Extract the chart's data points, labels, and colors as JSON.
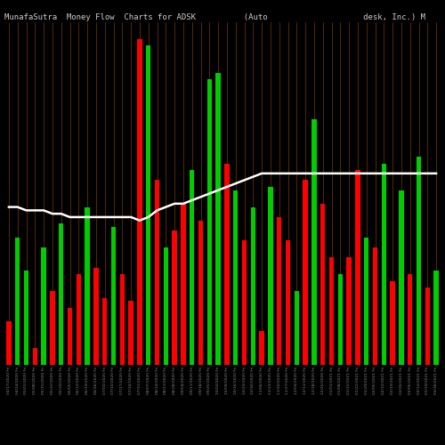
{
  "title": "MunafaSutra  Money Flow  Charts for ADSK          (Auto                    desk, Inc.) M",
  "bg_color": "#000000",
  "bar_colors": [
    "#ff0000",
    "#00cc00",
    "#00cc00",
    "#ff0000",
    "#00cc00",
    "#ff0000",
    "#00cc00",
    "#ff0000",
    "#ff0000",
    "#00cc00",
    "#ff0000",
    "#ff0000",
    "#00cc00",
    "#ff0000",
    "#ff0000",
    "#ff0000",
    "#00cc00",
    "#ff0000",
    "#00cc00",
    "#ff0000",
    "#ff0000",
    "#00cc00",
    "#ff0000",
    "#00cc00",
    "#00cc00",
    "#ff0000",
    "#00cc00",
    "#ff0000",
    "#00cc00",
    "#ff0000",
    "#00cc00",
    "#ff0000",
    "#ff0000",
    "#00cc00",
    "#ff0000",
    "#00cc00",
    "#ff0000",
    "#ff0000",
    "#00cc00",
    "#ff0000",
    "#ff0000",
    "#00cc00",
    "#ff0000",
    "#00cc00",
    "#ff0000",
    "#00cc00",
    "#ff0000",
    "#00cc00",
    "#ff0000",
    "#00cc00"
  ],
  "bar_values": [
    0.13,
    0.38,
    0.28,
    0.05,
    0.35,
    0.22,
    0.42,
    0.17,
    0.27,
    0.47,
    0.29,
    0.2,
    0.41,
    0.27,
    0.19,
    0.97,
    0.95,
    0.55,
    0.35,
    0.4,
    0.48,
    0.58,
    0.43,
    0.85,
    0.87,
    0.6,
    0.52,
    0.37,
    0.47,
    0.1,
    0.53,
    0.44,
    0.37,
    0.22,
    0.55,
    0.73,
    0.48,
    0.32,
    0.27,
    0.32,
    0.58,
    0.38,
    0.35,
    0.6,
    0.25,
    0.52,
    0.27,
    0.62,
    0.23,
    0.28
  ],
  "line_values": [
    0.47,
    0.47,
    0.46,
    0.46,
    0.46,
    0.45,
    0.45,
    0.44,
    0.44,
    0.44,
    0.44,
    0.44,
    0.44,
    0.44,
    0.44,
    0.43,
    0.44,
    0.46,
    0.47,
    0.48,
    0.48,
    0.49,
    0.5,
    0.51,
    0.52,
    0.53,
    0.54,
    0.55,
    0.56,
    0.57,
    0.57,
    0.57,
    0.57,
    0.57,
    0.57,
    0.57,
    0.57,
    0.57,
    0.57,
    0.57,
    0.57,
    0.57,
    0.57,
    0.57,
    0.57,
    0.57,
    0.57,
    0.57,
    0.57,
    0.57
  ],
  "xlabels": [
    "04/17/2020 Fri",
    "04/24/2020 Fri",
    "05/01/2020 Fri",
    "05/08/2020 Fri",
    "05/15/2020 Fri",
    "05/22/2020 Fri",
    "05/29/2020 Fri",
    "06/05/2020 Fri",
    "06/12/2020 Fri",
    "06/19/2020 Fri",
    "06/26/2020 Fri",
    "07/03/2020 Fri",
    "07/10/2020 Fri",
    "07/17/2020 Fri",
    "07/24/2020 Fri",
    "07/31/2020 Fri",
    "08/07/2020 Fri",
    "08/14/2020 Fri",
    "08/21/2020 Fri",
    "08/28/2020 Fri",
    "09/04/2020 Fri",
    "09/11/2020 Fri",
    "09/18/2020 Fri",
    "09/25/2020 Fri",
    "10/02/2020 Fri",
    "10/09/2020 Fri",
    "10/16/2020 Fri",
    "10/23/2020 Fri",
    "10/30/2020 Fri",
    "11/06/2020 Fri",
    "11/13/2020 Fri",
    "11/20/2020 Fri",
    "11/27/2020 Fri",
    "12/04/2020 Fri",
    "12/11/2020 Fri",
    "12/18/2020 Fri",
    "12/25/2020 Fri",
    "01/01/2021 Fri",
    "01/08/2021 Fri",
    "01/15/2021 Fri",
    "01/22/2021 Fri",
    "01/29/2021 Fri",
    "02/05/2021 Fri",
    "02/12/2021 Fri",
    "02/19/2021 Fri",
    "02/26/2021 Fri",
    "03/05/2021 Fri",
    "03/12/2021 Fri",
    "03/19/2021 Fri",
    "03/26/2021 Fri"
  ],
  "grid_color": "#7a3800",
  "line_color": "#ffffff",
  "title_color": "#cccccc",
  "title_fontsize": 6.5
}
